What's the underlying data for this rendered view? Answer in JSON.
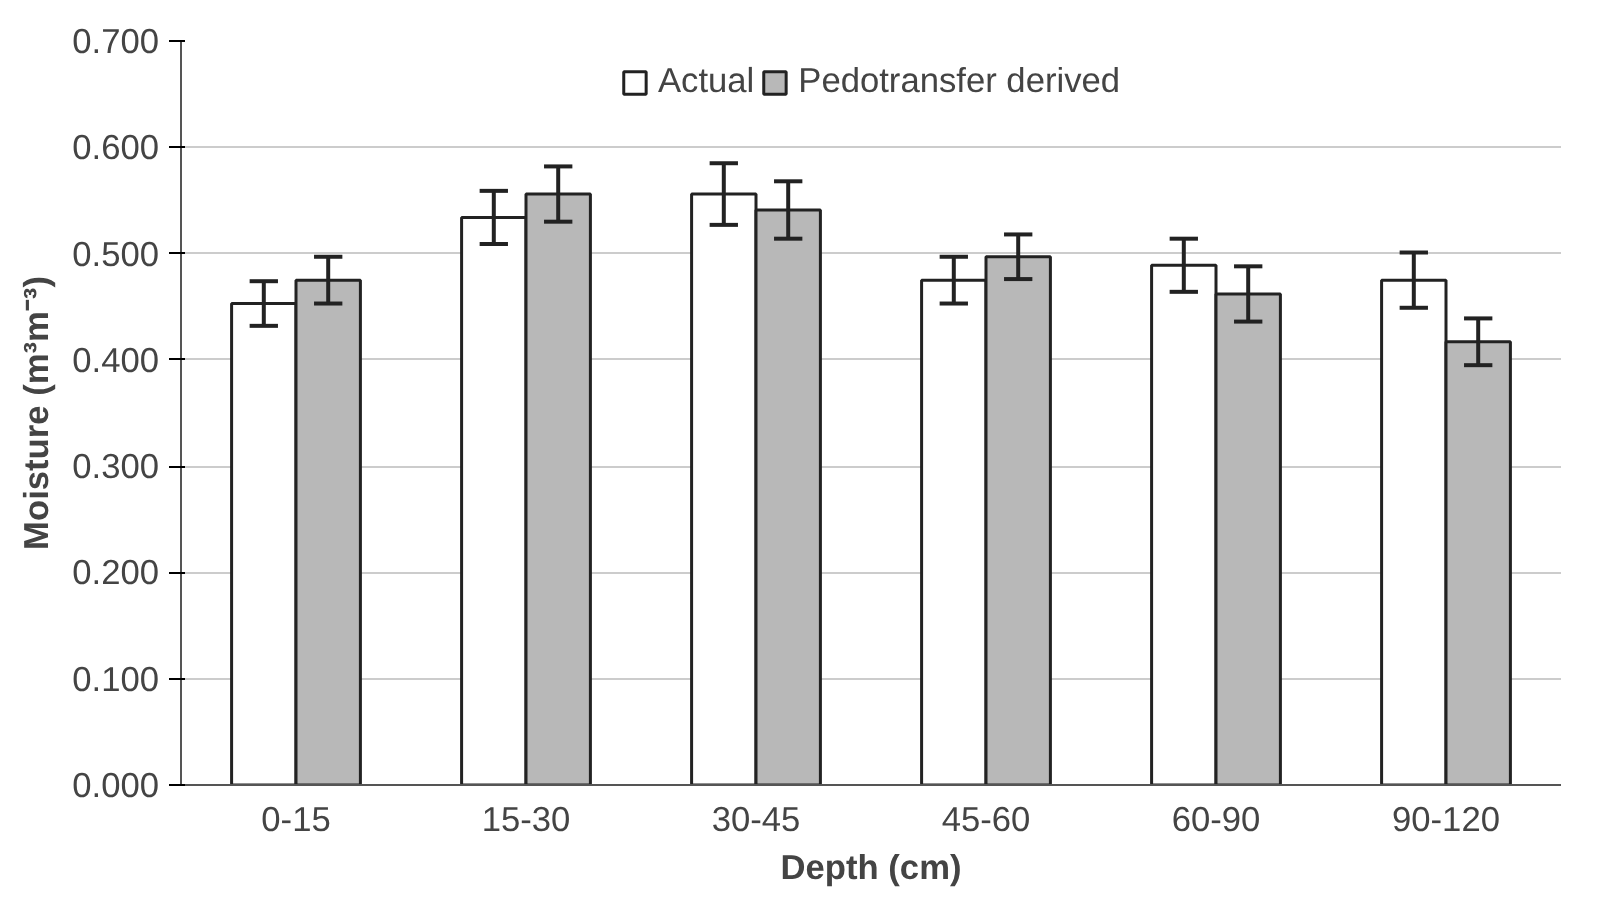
{
  "chart_data": {
    "type": "bar",
    "xlabel": "Depth (cm)",
    "ylabel": "Moisture (m³m⁻³)",
    "categories": [
      "0-15",
      "15-30",
      "30-45",
      "45-60",
      "60-90",
      "90-120"
    ],
    "series": [
      {
        "name": "Actual",
        "color": "#ffffff",
        "values": [
          0.453,
          0.534,
          0.556,
          0.475,
          0.489,
          0.475
        ],
        "errors": [
          0.021,
          0.025,
          0.029,
          0.022,
          0.025,
          0.026
        ]
      },
      {
        "name": "Pedotransfer derived",
        "color": "#b8b8b8",
        "values": [
          0.475,
          0.556,
          0.541,
          0.497,
          0.462,
          0.417
        ],
        "errors": [
          0.022,
          0.026,
          0.027,
          0.021,
          0.026,
          0.022
        ]
      }
    ],
    "ylim": [
      0,
      0.7
    ],
    "yticks": [
      {
        "value": 0,
        "label": "0.000"
      },
      {
        "value": 0.1,
        "label": "0.100"
      },
      {
        "value": 0.2,
        "label": "0.200"
      },
      {
        "value": 0.3,
        "label": "0.300"
      },
      {
        "value": 0.4,
        "label": "0.400"
      },
      {
        "value": 0.5,
        "label": "0.500"
      },
      {
        "value": 0.6,
        "label": "0.600"
      },
      {
        "value": 0.7,
        "label": "0.700"
      }
    ],
    "grid": "y",
    "legend": "top"
  }
}
